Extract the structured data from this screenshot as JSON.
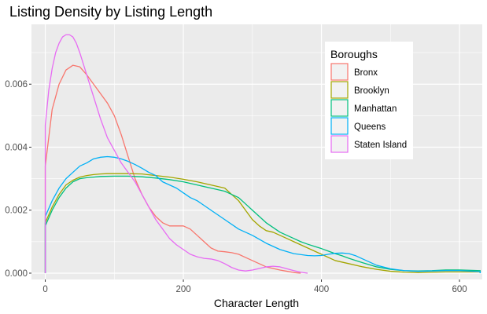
{
  "chart_data": {
    "type": "line",
    "title": "Listing Density by Listing Length",
    "xlabel": "Character Length",
    "ylabel": "",
    "xlim": [
      -20,
      633
    ],
    "ylim": [
      -0.0002,
      0.0079
    ],
    "x_ticks": [
      {
        "value": 0,
        "label": "0"
      },
      {
        "value": 200,
        "label": "200"
      },
      {
        "value": 400,
        "label": "400"
      },
      {
        "value": 600,
        "label": "600"
      }
    ],
    "y_ticks": [
      {
        "value": 0,
        "label": "0.000"
      },
      {
        "value": 0.002,
        "label": "0.002"
      },
      {
        "value": 0.004,
        "label": "0.004"
      },
      {
        "value": 0.006,
        "label": "0.006"
      }
    ],
    "grid": true,
    "legend": {
      "title": "Boroughs",
      "position": "top-right"
    },
    "series": [
      {
        "name": "Bronx",
        "color": "#F8766D",
        "points": [
          [
            0,
            0
          ],
          [
            0,
            0.0034
          ],
          [
            10,
            0.0052
          ],
          [
            20,
            0.006
          ],
          [
            30,
            0.00645
          ],
          [
            40,
            0.0066
          ],
          [
            50,
            0.00655
          ],
          [
            60,
            0.0063
          ],
          [
            70,
            0.006
          ],
          [
            80,
            0.0057
          ],
          [
            90,
            0.0054
          ],
          [
            100,
            0.005
          ],
          [
            110,
            0.0044
          ],
          [
            120,
            0.0037
          ],
          [
            130,
            0.003
          ],
          [
            140,
            0.0025
          ],
          [
            150,
            0.0021
          ],
          [
            160,
            0.0018
          ],
          [
            170,
            0.0016
          ],
          [
            180,
            0.0015
          ],
          [
            190,
            0.0015
          ],
          [
            200,
            0.0015
          ],
          [
            210,
            0.0014
          ],
          [
            220,
            0.0012
          ],
          [
            230,
            0.001
          ],
          [
            240,
            0.0008
          ],
          [
            250,
            0.0007
          ],
          [
            260,
            0.00068
          ],
          [
            270,
            0.00065
          ],
          [
            280,
            0.0006
          ],
          [
            290,
            0.0005
          ],
          [
            300,
            0.0004
          ],
          [
            310,
            0.0003
          ],
          [
            320,
            0.0002
          ],
          [
            330,
            0.00015
          ],
          [
            340,
            0.0001
          ],
          [
            350,
            6e-05
          ],
          [
            360,
            2e-05
          ],
          [
            370,
            0
          ]
        ]
      },
      {
        "name": "Brooklyn",
        "color": "#A3A500",
        "points": [
          [
            0,
            0
          ],
          [
            0,
            0.0016
          ],
          [
            10,
            0.0021
          ],
          [
            20,
            0.0025
          ],
          [
            30,
            0.0028
          ],
          [
            40,
            0.00295
          ],
          [
            50,
            0.00305
          ],
          [
            60,
            0.0031
          ],
          [
            70,
            0.00313
          ],
          [
            80,
            0.00315
          ],
          [
            90,
            0.00316
          ],
          [
            100,
            0.00316
          ],
          [
            120,
            0.00316
          ],
          [
            140,
            0.00315
          ],
          [
            160,
            0.0031
          ],
          [
            180,
            0.00305
          ],
          [
            200,
            0.00298
          ],
          [
            220,
            0.0029
          ],
          [
            240,
            0.0028
          ],
          [
            260,
            0.0027
          ],
          [
            270,
            0.0025
          ],
          [
            280,
            0.0023
          ],
          [
            290,
            0.002
          ],
          [
            300,
            0.0017
          ],
          [
            310,
            0.0015
          ],
          [
            320,
            0.00135
          ],
          [
            330,
            0.0013
          ],
          [
            340,
            0.0012
          ],
          [
            350,
            0.0011
          ],
          [
            360,
            0.001
          ],
          [
            370,
            0.0009
          ],
          [
            380,
            0.0008
          ],
          [
            390,
            0.0007
          ],
          [
            400,
            0.0006
          ],
          [
            420,
            0.0004
          ],
          [
            440,
            0.0003
          ],
          [
            460,
            0.0002
          ],
          [
            480,
            0.00012
          ],
          [
            500,
            6e-05
          ],
          [
            520,
            3e-05
          ],
          [
            540,
            2e-05
          ],
          [
            560,
            3e-05
          ],
          [
            580,
            4e-05
          ],
          [
            600,
            4e-05
          ],
          [
            630,
            4e-05
          ],
          [
            630,
            0
          ]
        ]
      },
      {
        "name": "Manhattan",
        "color": "#00BF7D",
        "points": [
          [
            0,
            0
          ],
          [
            0,
            0.0015
          ],
          [
            10,
            0.002
          ],
          [
            20,
            0.0024
          ],
          [
            30,
            0.0027
          ],
          [
            40,
            0.0029
          ],
          [
            50,
            0.003
          ],
          [
            60,
            0.00303
          ],
          [
            70,
            0.00305
          ],
          [
            80,
            0.00307
          ],
          [
            100,
            0.00308
          ],
          [
            120,
            0.00308
          ],
          [
            140,
            0.00306
          ],
          [
            160,
            0.00302
          ],
          [
            180,
            0.00297
          ],
          [
            200,
            0.0029
          ],
          [
            220,
            0.0028
          ],
          [
            240,
            0.0027
          ],
          [
            260,
            0.0026
          ],
          [
            270,
            0.0025
          ],
          [
            280,
            0.0024
          ],
          [
            290,
            0.0022
          ],
          [
            300,
            0.002
          ],
          [
            310,
            0.0018
          ],
          [
            320,
            0.0016
          ],
          [
            330,
            0.00145
          ],
          [
            340,
            0.0013
          ],
          [
            350,
            0.0012
          ],
          [
            360,
            0.0011
          ],
          [
            370,
            0.001
          ],
          [
            380,
            0.00092
          ],
          [
            390,
            0.00085
          ],
          [
            400,
            0.00078
          ],
          [
            410,
            0.0007
          ],
          [
            420,
            0.00062
          ],
          [
            430,
            0.00055
          ],
          [
            440,
            0.00047
          ],
          [
            460,
            0.00033
          ],
          [
            480,
            0.0002
          ],
          [
            500,
            0.00012
          ],
          [
            520,
            8e-05
          ],
          [
            540,
            7e-05
          ],
          [
            560,
            8e-05
          ],
          [
            580,
            0.0001
          ],
          [
            600,
            0.0001
          ],
          [
            630,
            8e-05
          ],
          [
            630,
            0
          ]
        ]
      },
      {
        "name": "Queens",
        "color": "#00B0F6",
        "points": [
          [
            0,
            0
          ],
          [
            0,
            0.0018
          ],
          [
            10,
            0.0023
          ],
          [
            20,
            0.0027
          ],
          [
            30,
            0.003
          ],
          [
            40,
            0.0032
          ],
          [
            50,
            0.0034
          ],
          [
            60,
            0.0035
          ],
          [
            70,
            0.00363
          ],
          [
            80,
            0.00368
          ],
          [
            90,
            0.0037
          ],
          [
            100,
            0.00368
          ],
          [
            110,
            0.00363
          ],
          [
            120,
            0.00355
          ],
          [
            130,
            0.00345
          ],
          [
            140,
            0.00333
          ],
          [
            150,
            0.0032
          ],
          [
            160,
            0.0031
          ],
          [
            170,
            0.0029
          ],
          [
            180,
            0.0028
          ],
          [
            190,
            0.0027
          ],
          [
            200,
            0.00255
          ],
          [
            210,
            0.0024
          ],
          [
            220,
            0.0023
          ],
          [
            240,
            0.002
          ],
          [
            260,
            0.0017
          ],
          [
            280,
            0.0014
          ],
          [
            300,
            0.0012
          ],
          [
            320,
            0.00095
          ],
          [
            340,
            0.00075
          ],
          [
            360,
            0.00062
          ],
          [
            380,
            0.00056
          ],
          [
            390,
            0.00055
          ],
          [
            400,
            0.00056
          ],
          [
            410,
            0.0006
          ],
          [
            420,
            0.00063
          ],
          [
            430,
            0.00064
          ],
          [
            440,
            0.00062
          ],
          [
            450,
            0.00055
          ],
          [
            460,
            0.00045
          ],
          [
            470,
            0.00035
          ],
          [
            480,
            0.00025
          ],
          [
            500,
            0.00014
          ],
          [
            520,
            8e-05
          ],
          [
            540,
            6e-05
          ],
          [
            560,
            7e-05
          ],
          [
            580,
            8e-05
          ],
          [
            600,
            8e-05
          ],
          [
            630,
            5e-05
          ],
          [
            630,
            0
          ]
        ]
      },
      {
        "name": "Staten Island",
        "color": "#E76BF3",
        "points": [
          [
            0,
            0
          ],
          [
            0,
            0.0047
          ],
          [
            5,
            0.0058
          ],
          [
            10,
            0.0065
          ],
          [
            15,
            0.007
          ],
          [
            20,
            0.0073
          ],
          [
            25,
            0.0075
          ],
          [
            30,
            0.00757
          ],
          [
            35,
            0.00757
          ],
          [
            40,
            0.0075
          ],
          [
            45,
            0.0073
          ],
          [
            50,
            0.007
          ],
          [
            60,
            0.0063
          ],
          [
            70,
            0.0056
          ],
          [
            80,
            0.0049
          ],
          [
            90,
            0.0043
          ],
          [
            100,
            0.0039
          ],
          [
            110,
            0.0035
          ],
          [
            120,
            0.0032
          ],
          [
            130,
            0.0029
          ],
          [
            140,
            0.0025
          ],
          [
            150,
            0.0021
          ],
          [
            160,
            0.0017
          ],
          [
            170,
            0.0014
          ],
          [
            180,
            0.0011
          ],
          [
            190,
            0.0009
          ],
          [
            200,
            0.00075
          ],
          [
            210,
            0.0006
          ],
          [
            220,
            0.00052
          ],
          [
            230,
            0.00047
          ],
          [
            240,
            0.00045
          ],
          [
            250,
            0.0004
          ],
          [
            260,
            0.0003
          ],
          [
            270,
            0.00018
          ],
          [
            280,
            0.0001
          ],
          [
            290,
            7e-05
          ],
          [
            300,
            0.0001
          ],
          [
            310,
            0.00015
          ],
          [
            320,
            0.0002
          ],
          [
            330,
            0.00022
          ],
          [
            340,
            0.0002
          ],
          [
            350,
            0.00014
          ],
          [
            360,
            8e-05
          ],
          [
            370,
            3e-05
          ],
          [
            380,
            0
          ]
        ]
      }
    ]
  }
}
